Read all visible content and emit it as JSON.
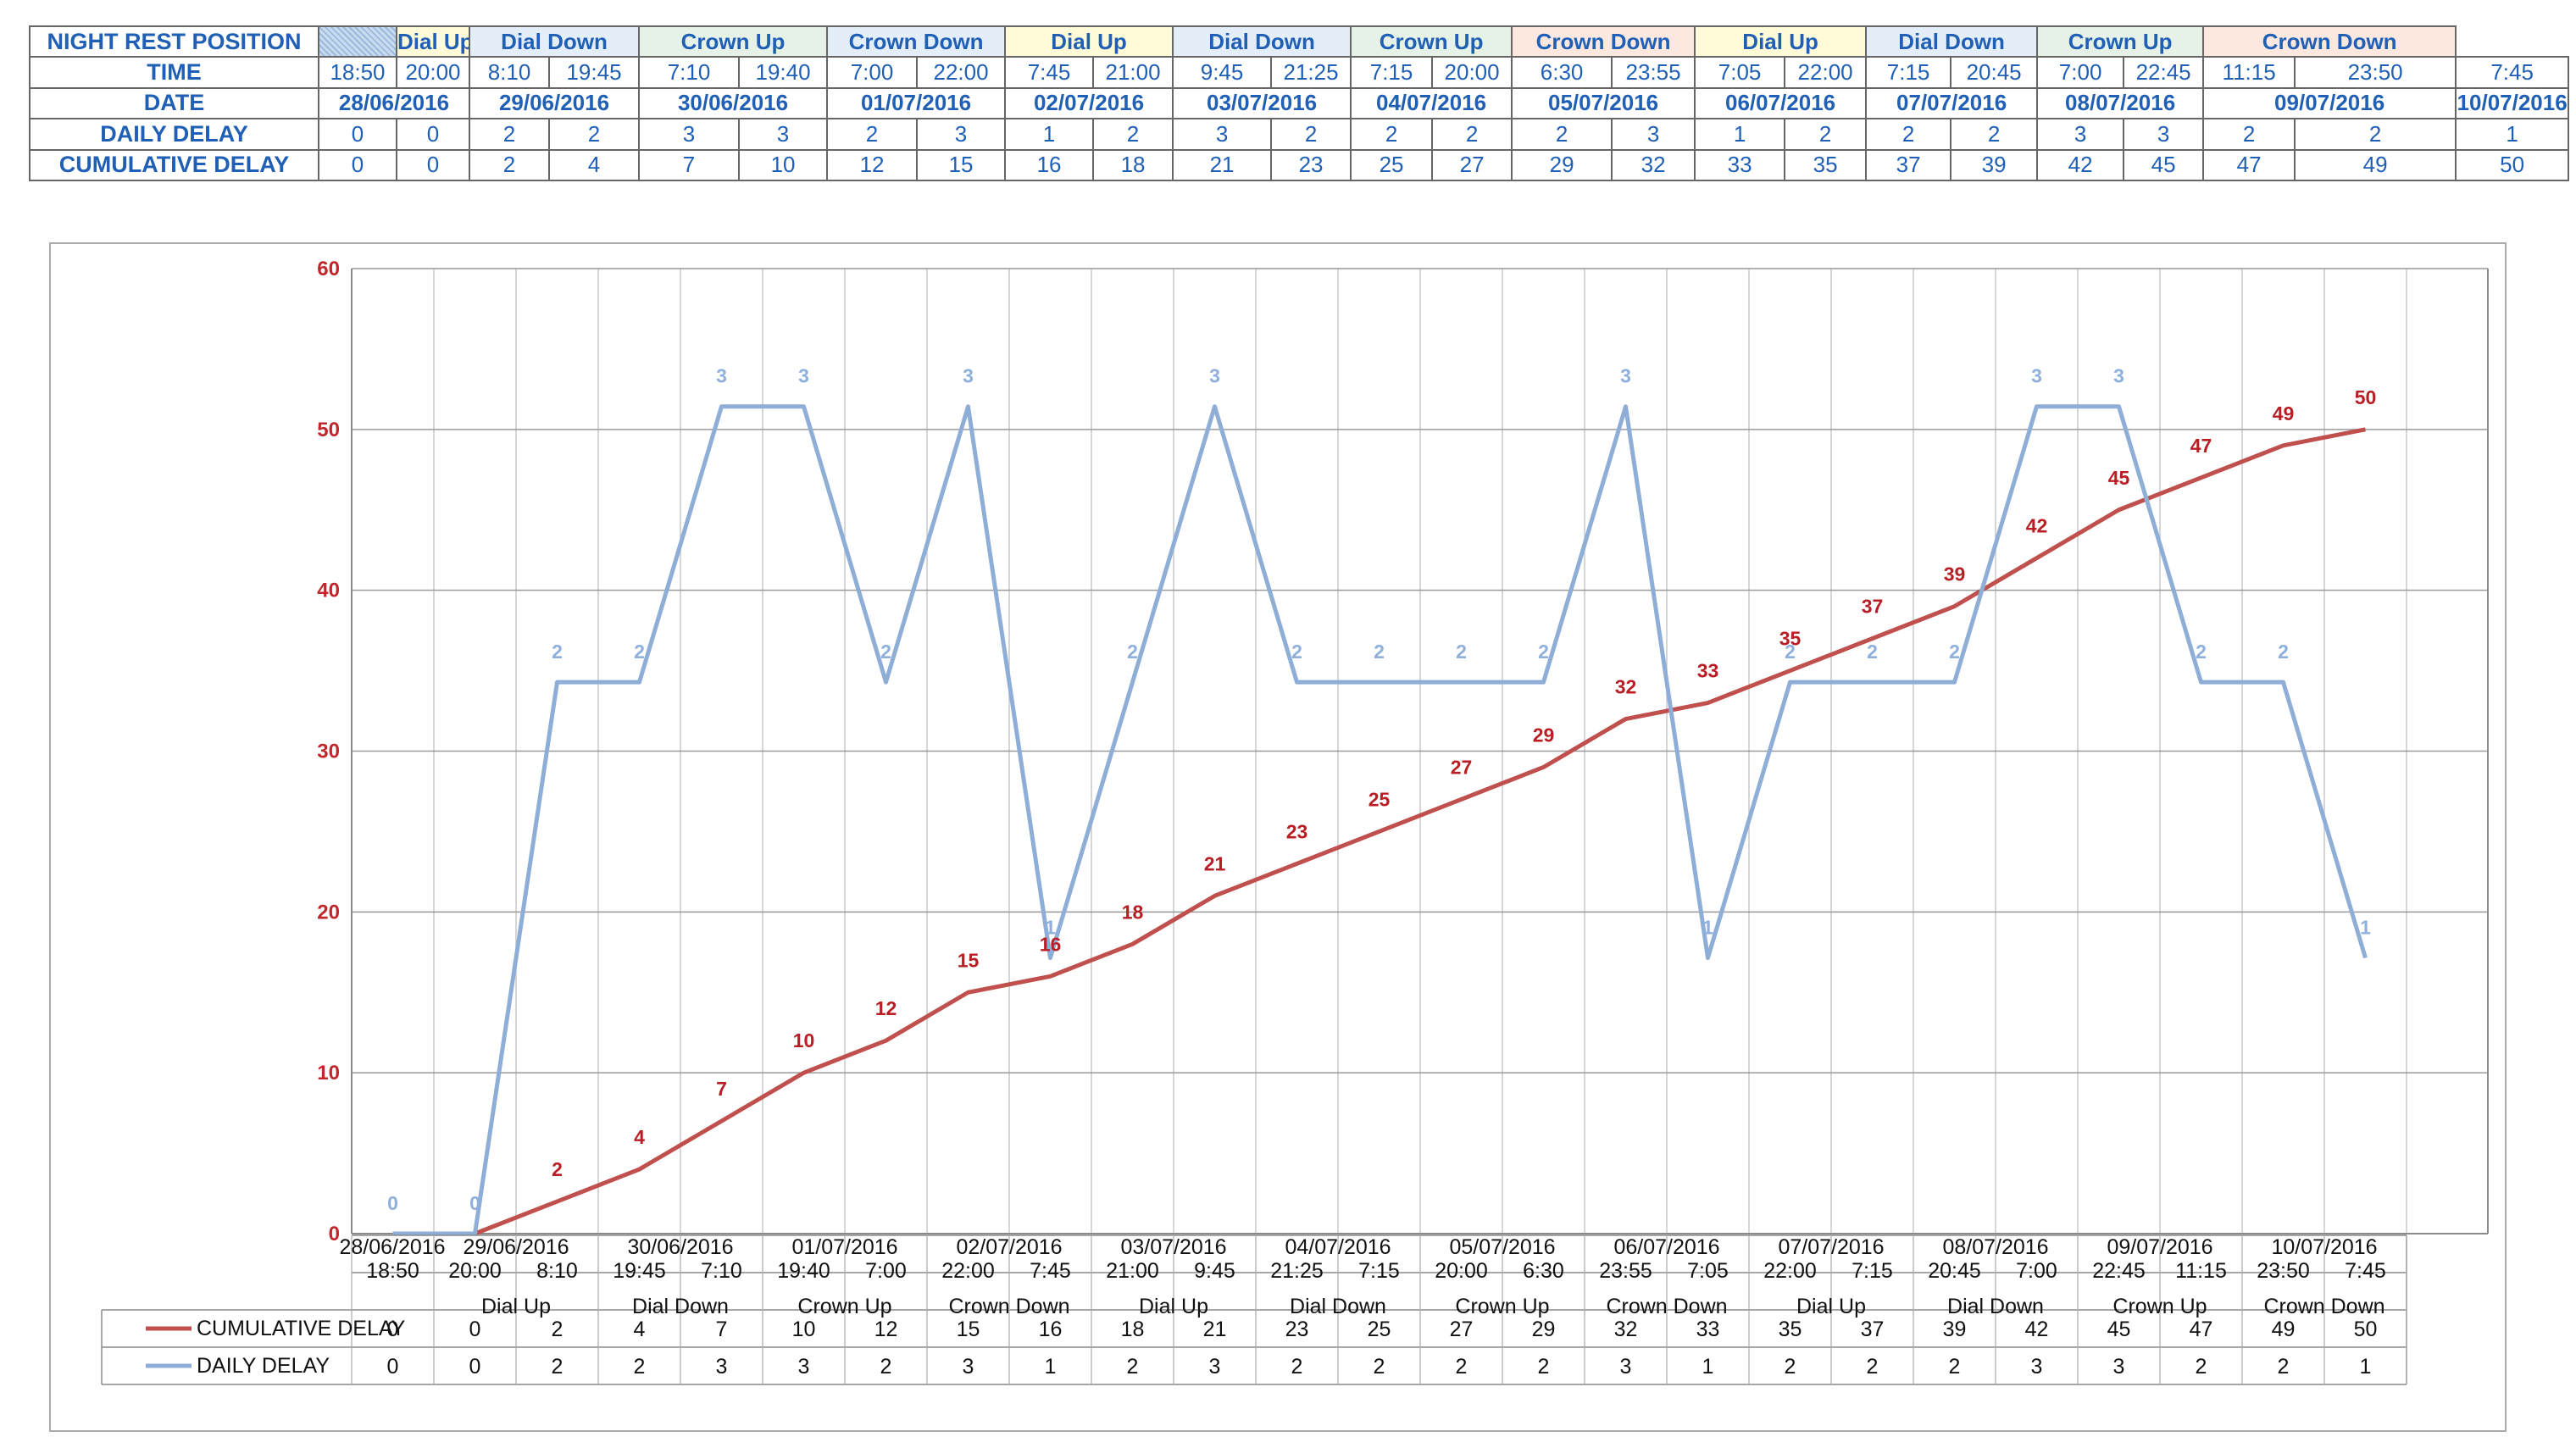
{
  "table": {
    "row_headers": [
      "NIGHT REST POSITION",
      "TIME",
      "DATE",
      "DAILY DELAY",
      "CUMULATIVE DELAY"
    ],
    "positions": [
      {
        "label": "Dial Up",
        "span": 1,
        "color": "c1"
      },
      {
        "label": "Dial Down",
        "span": 2,
        "color": "c2"
      },
      {
        "label": "Crown Up",
        "span": 2,
        "color": "c3"
      },
      {
        "label": "Crown Down",
        "span": 2,
        "color": "c2"
      },
      {
        "label": "Dial Up",
        "span": 2,
        "color": "c1"
      },
      {
        "label": "Dial Down",
        "span": 2,
        "color": "c2"
      },
      {
        "label": "Crown Up",
        "span": 2,
        "color": "c3"
      },
      {
        "label": "Crown Down",
        "span": 2,
        "color": "c4"
      },
      {
        "label": "Dial Up",
        "span": 2,
        "color": "c1"
      },
      {
        "label": "Dial Down",
        "span": 2,
        "color": "c2"
      },
      {
        "label": "Crown Up",
        "span": 2,
        "color": "c3"
      },
      {
        "label": "Crown Down",
        "span": 2,
        "color": "c4"
      }
    ],
    "times": [
      "18:50",
      "20:00",
      "8:10",
      "19:45",
      "7:10",
      "19:40",
      "7:00",
      "22:00",
      "7:45",
      "21:00",
      "9:45",
      "21:25",
      "7:15",
      "20:00",
      "6:30",
      "23:55",
      "7:05",
      "22:00",
      "7:15",
      "20:45",
      "7:00",
      "22:45",
      "11:15",
      "23:50",
      "7:45"
    ],
    "dates": [
      {
        "label": "28/06/2016",
        "span": 2
      },
      {
        "label": "29/06/2016",
        "span": 2
      },
      {
        "label": "30/06/2016",
        "span": 2
      },
      {
        "label": "01/07/2016",
        "span": 2
      },
      {
        "label": "02/07/2016",
        "span": 2
      },
      {
        "label": "03/07/2016",
        "span": 2
      },
      {
        "label": "04/07/2016",
        "span": 2
      },
      {
        "label": "05/07/2016",
        "span": 2
      },
      {
        "label": "06/07/2016",
        "span": 2
      },
      {
        "label": "07/07/2016",
        "span": 2
      },
      {
        "label": "08/07/2016",
        "span": 2
      },
      {
        "label": "09/07/2016",
        "span": 2
      },
      {
        "label": "10/07/2016",
        "span": 1
      }
    ],
    "daily": [
      0,
      0,
      2,
      2,
      3,
      3,
      2,
      3,
      1,
      2,
      3,
      2,
      2,
      2,
      2,
      3,
      1,
      2,
      2,
      2,
      3,
      3,
      2,
      2,
      1
    ],
    "cumulative": [
      0,
      0,
      2,
      4,
      7,
      10,
      12,
      15,
      16,
      18,
      21,
      23,
      25,
      27,
      29,
      32,
      33,
      35,
      37,
      39,
      42,
      45,
      47,
      49,
      50
    ]
  },
  "chart_data": {
    "type": "line",
    "x": [
      "18:50",
      "20:00",
      "8:10",
      "19:45",
      "7:10",
      "19:40",
      "7:00",
      "22:00",
      "7:45",
      "21:00",
      "9:45",
      "21:25",
      "7:15",
      "20:00",
      "6:30",
      "23:55",
      "7:05",
      "22:00",
      "7:15",
      "20:45",
      "7:00",
      "22:45",
      "11:15",
      "23:50",
      "7:45"
    ],
    "date_labels": [
      "28/06/2016",
      "29/06/2016",
      "30/06/2016",
      "01/07/2016",
      "02/07/2016",
      "03/07/2016",
      "04/07/2016",
      "05/07/2016",
      "06/07/2016",
      "07/07/2016",
      "08/07/2016",
      "09/07/2016",
      "10/07/2016"
    ],
    "position_labels": [
      "Dial Up",
      "Dial Down",
      "Crown Up",
      "Crown Down",
      "Dial Up",
      "Dial Down",
      "Crown Up",
      "Crown Down",
      "Dial Up",
      "Dial Down",
      "Crown Up",
      "Crown Down"
    ],
    "series": [
      {
        "name": "CUMULATIVE DELAY",
        "axis": "left",
        "color": "#c0504d",
        "values": [
          0,
          0,
          2,
          4,
          7,
          10,
          12,
          15,
          16,
          18,
          21,
          23,
          25,
          27,
          29,
          32,
          33,
          35,
          37,
          39,
          42,
          45,
          47,
          49,
          50
        ]
      },
      {
        "name": "DAILY DELAY",
        "axis": "right",
        "color": "#8eaed8",
        "values": [
          0,
          0,
          2,
          2,
          3,
          3,
          2,
          3,
          1,
          2,
          3,
          2,
          2,
          2,
          2,
          3,
          1,
          2,
          2,
          2,
          3,
          3,
          2,
          2,
          1
        ]
      }
    ],
    "y_left": {
      "range": [
        0,
        60
      ],
      "ticks": [
        "0",
        "10",
        "20",
        "30",
        "40",
        "50",
        "60"
      ]
    },
    "y_right": {
      "range": [
        0,
        3.5
      ],
      "ticks": [
        "0",
        "0,5",
        "1",
        "1,5",
        "2",
        "2,5",
        "3",
        "3,5"
      ]
    },
    "grid": true,
    "legend": "data table below chart"
  }
}
